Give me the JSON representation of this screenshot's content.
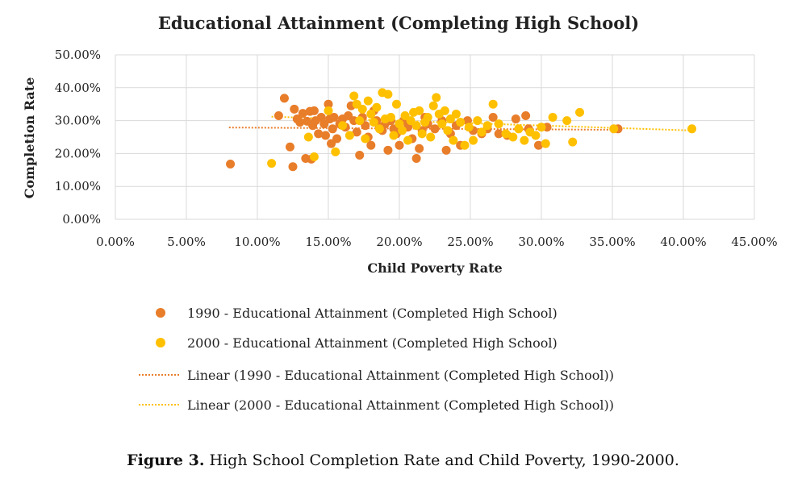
{
  "chart_data": {
    "type": "scatter",
    "title": "Educational Attainment (Completing High School)",
    "xlabel": "Child Poverty Rate",
    "ylabel": "Completion Rate",
    "xlim": [
      0,
      0.45
    ],
    "ylim": [
      0,
      0.5
    ],
    "x_ticks": [
      "0.00%",
      "5.00%",
      "10.00%",
      "15.00%",
      "20.00%",
      "25.00%",
      "30.00%",
      "35.00%",
      "40.00%",
      "45.00%"
    ],
    "y_ticks": [
      "0.00%",
      "10.00%",
      "20.00%",
      "30.00%",
      "40.00%",
      "50.00%"
    ],
    "grid": true,
    "legend_position": "bottom",
    "series": [
      {
        "name": "1990 - Educational Attainment (Completed High School)",
        "color": "#E87D2A",
        "points": [
          [
            0.081,
            0.168
          ],
          [
            0.115,
            0.315
          ],
          [
            0.119,
            0.368
          ],
          [
            0.123,
            0.22
          ],
          [
            0.125,
            0.16
          ],
          [
            0.126,
            0.335
          ],
          [
            0.128,
            0.305
          ],
          [
            0.13,
            0.295
          ],
          [
            0.132,
            0.322
          ],
          [
            0.134,
            0.185
          ],
          [
            0.135,
            0.298
          ],
          [
            0.137,
            0.328
          ],
          [
            0.138,
            0.183
          ],
          [
            0.139,
            0.285
          ],
          [
            0.14,
            0.33
          ],
          [
            0.141,
            0.3
          ],
          [
            0.143,
            0.26
          ],
          [
            0.145,
            0.31
          ],
          [
            0.147,
            0.29
          ],
          [
            0.148,
            0.255
          ],
          [
            0.15,
            0.35
          ],
          [
            0.151,
            0.305
          ],
          [
            0.152,
            0.23
          ],
          [
            0.153,
            0.275
          ],
          [
            0.154,
            0.31
          ],
          [
            0.156,
            0.245
          ],
          [
            0.158,
            0.29
          ],
          [
            0.16,
            0.305
          ],
          [
            0.162,
            0.28
          ],
          [
            0.164,
            0.315
          ],
          [
            0.166,
            0.345
          ],
          [
            0.168,
            0.3
          ],
          [
            0.17,
            0.265
          ],
          [
            0.172,
            0.195
          ],
          [
            0.174,
            0.31
          ],
          [
            0.176,
            0.285
          ],
          [
            0.178,
            0.25
          ],
          [
            0.18,
            0.225
          ],
          [
            0.182,
            0.33
          ],
          [
            0.184,
            0.3
          ],
          [
            0.186,
            0.28
          ],
          [
            0.188,
            0.27
          ],
          [
            0.19,
            0.29
          ],
          [
            0.192,
            0.21
          ],
          [
            0.194,
            0.3
          ],
          [
            0.196,
            0.275
          ],
          [
            0.198,
            0.26
          ],
          [
            0.2,
            0.225
          ],
          [
            0.203,
            0.3
          ],
          [
            0.206,
            0.28
          ],
          [
            0.209,
            0.245
          ],
          [
            0.212,
            0.185
          ],
          [
            0.214,
            0.215
          ],
          [
            0.216,
            0.27
          ],
          [
            0.218,
            0.31
          ],
          [
            0.22,
            0.29
          ],
          [
            0.225,
            0.275
          ],
          [
            0.23,
            0.3
          ],
          [
            0.233,
            0.21
          ],
          [
            0.236,
            0.26
          ],
          [
            0.24,
            0.285
          ],
          [
            0.243,
            0.225
          ],
          [
            0.248,
            0.3
          ],
          [
            0.252,
            0.27
          ],
          [
            0.258,
            0.26
          ],
          [
            0.262,
            0.275
          ],
          [
            0.266,
            0.31
          ],
          [
            0.27,
            0.26
          ],
          [
            0.276,
            0.255
          ],
          [
            0.282,
            0.305
          ],
          [
            0.289,
            0.315
          ],
          [
            0.291,
            0.275
          ],
          [
            0.298,
            0.225
          ],
          [
            0.304,
            0.28
          ],
          [
            0.354,
            0.275
          ]
        ]
      },
      {
        "name": "2000 - Educational Attainment (Completed High School)",
        "color": "#FFC000",
        "points": [
          [
            0.11,
            0.17
          ],
          [
            0.136,
            0.25
          ],
          [
            0.14,
            0.19
          ],
          [
            0.15,
            0.33
          ],
          [
            0.155,
            0.205
          ],
          [
            0.16,
            0.285
          ],
          [
            0.165,
            0.255
          ],
          [
            0.168,
            0.375
          ],
          [
            0.17,
            0.35
          ],
          [
            0.172,
            0.3
          ],
          [
            0.174,
            0.335
          ],
          [
            0.176,
            0.245
          ],
          [
            0.178,
            0.36
          ],
          [
            0.18,
            0.32
          ],
          [
            0.182,
            0.295
          ],
          [
            0.184,
            0.34
          ],
          [
            0.186,
            0.275
          ],
          [
            0.188,
            0.385
          ],
          [
            0.19,
            0.305
          ],
          [
            0.192,
            0.38
          ],
          [
            0.194,
            0.31
          ],
          [
            0.196,
            0.255
          ],
          [
            0.198,
            0.35
          ],
          [
            0.2,
            0.29
          ],
          [
            0.202,
            0.27
          ],
          [
            0.204,
            0.315
          ],
          [
            0.206,
            0.24
          ],
          [
            0.208,
            0.3
          ],
          [
            0.21,
            0.325
          ],
          [
            0.212,
            0.285
          ],
          [
            0.214,
            0.33
          ],
          [
            0.216,
            0.26
          ],
          [
            0.218,
            0.295
          ],
          [
            0.22,
            0.31
          ],
          [
            0.222,
            0.25
          ],
          [
            0.224,
            0.345
          ],
          [
            0.226,
            0.37
          ],
          [
            0.228,
            0.32
          ],
          [
            0.23,
            0.29
          ],
          [
            0.232,
            0.33
          ],
          [
            0.234,
            0.27
          ],
          [
            0.236,
            0.305
          ],
          [
            0.238,
            0.24
          ],
          [
            0.24,
            0.32
          ],
          [
            0.243,
            0.295
          ],
          [
            0.246,
            0.225
          ],
          [
            0.249,
            0.28
          ],
          [
            0.252,
            0.24
          ],
          [
            0.255,
            0.3
          ],
          [
            0.258,
            0.265
          ],
          [
            0.262,
            0.285
          ],
          [
            0.266,
            0.35
          ],
          [
            0.27,
            0.29
          ],
          [
            0.275,
            0.26
          ],
          [
            0.28,
            0.25
          ],
          [
            0.284,
            0.275
          ],
          [
            0.288,
            0.24
          ],
          [
            0.292,
            0.265
          ],
          [
            0.296,
            0.255
          ],
          [
            0.3,
            0.28
          ],
          [
            0.303,
            0.23
          ],
          [
            0.308,
            0.31
          ],
          [
            0.318,
            0.3
          ],
          [
            0.322,
            0.235
          ],
          [
            0.327,
            0.325
          ],
          [
            0.351,
            0.275
          ],
          [
            0.406,
            0.275
          ]
        ]
      }
    ],
    "trendlines": [
      {
        "name": "Linear (1990 - Educational Attainment (Completed High School))",
        "color": "#E87D2A",
        "from": [
          0.08,
          0.279
        ],
        "to": [
          0.355,
          0.272
        ]
      },
      {
        "name": "Linear (2000 - Educational Attainment (Completed High School))",
        "color": "#FFC000",
        "from": [
          0.11,
          0.312
        ],
        "to": [
          0.406,
          0.27
        ]
      }
    ]
  },
  "caption": {
    "label": "Figure 3.",
    "text": " High School Completion Rate and Child Poverty, 1990-2000."
  }
}
